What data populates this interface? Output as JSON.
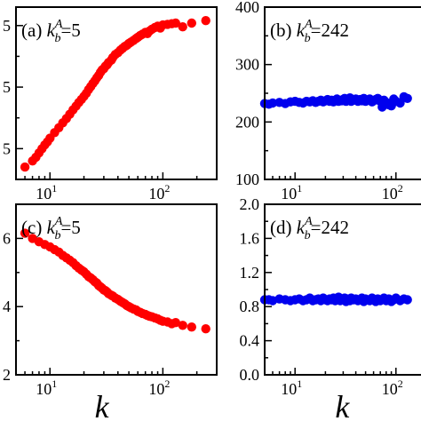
{
  "chart_data": [
    {
      "type": "scatter",
      "panel": "(a)",
      "legend": {
        "prefix": "(a)",
        "var": "k",
        "sub": "b",
        "sup": "A",
        "value": "=5"
      },
      "xlabel": "k",
      "xscale": "log",
      "xlim": [
        5,
        300
      ],
      "xticks": [
        {
          "v": 10,
          "base": "10",
          "exp": "1"
        },
        {
          "v": 100,
          "base": "10",
          "exp": "2"
        }
      ],
      "ylim": [
        0,
        28
      ],
      "yticks": [
        {
          "v": 5,
          "label": "5"
        },
        {
          "v": 15,
          "label": "5"
        },
        {
          "v": 25,
          "label": "5"
        }
      ],
      "yticks_label_note": "left digits clipped in image",
      "color": "#ff0000",
      "x": [
        6,
        7,
        7.5,
        8,
        8.5,
        9,
        9.5,
        10,
        11,
        12,
        13,
        14,
        15,
        16,
        17,
        18,
        19,
        20,
        21,
        22,
        23,
        24,
        25,
        26,
        27,
        28,
        29,
        30,
        31,
        32,
        33,
        35,
        36,
        38,
        40,
        42,
        44,
        46,
        48,
        50,
        52,
        55,
        58,
        60,
        63,
        66,
        70,
        73,
        76,
        80,
        85,
        90,
        95,
        100,
        110,
        120,
        130,
        150,
        180,
        240
      ],
      "y": [
        2.0,
        3.0,
        3.6,
        4.3,
        5.0,
        5.6,
        6.1,
        6.7,
        7.6,
        8.4,
        9.2,
        9.9,
        10.6,
        11.3,
        11.9,
        12.5,
        13.0,
        13.5,
        14.0,
        14.6,
        15.1,
        15.6,
        16.0,
        16.5,
        16.9,
        17.4,
        17.8,
        18.0,
        18.4,
        18.6,
        19.0,
        19.4,
        19.8,
        20.3,
        20.6,
        21.0,
        21.3,
        21.6,
        21.8,
        22.1,
        22.3,
        22.6,
        22.9,
        23.1,
        23.4,
        23.6,
        23.9,
        23.7,
        24.1,
        24.4,
        24.7,
        24.9,
        24.6,
        25.1,
        25.2,
        25.3,
        25.4,
        24.8,
        25.4,
        25.8
      ]
    },
    {
      "type": "scatter",
      "panel": "(b)",
      "legend": {
        "prefix": "(b)",
        "var": "k",
        "sub": "b",
        "sup": "A",
        "value": "=242"
      },
      "xlabel": "k",
      "xscale": "log",
      "xlim": [
        5,
        300
      ],
      "xticks": [
        {
          "v": 10,
          "base": "10",
          "exp": "1"
        },
        {
          "v": 100,
          "base": "10",
          "exp": "2"
        }
      ],
      "ylim": [
        100,
        400
      ],
      "yticks": [
        {
          "v": 100,
          "label": "100"
        },
        {
          "v": 200,
          "label": "200"
        },
        {
          "v": 300,
          "label": "300"
        },
        {
          "v": 400,
          "label": "400"
        }
      ],
      "color": "#0000ee",
      "x": [
        5,
        5.5,
        6,
        7,
        8,
        9,
        10,
        11,
        12,
        13,
        14,
        15,
        16,
        17,
        18,
        19,
        20,
        21,
        22,
        23,
        24,
        25,
        26,
        27,
        28,
        29,
        30,
        31,
        32,
        33,
        34,
        35,
        36,
        38,
        40,
        42,
        44,
        46,
        48,
        50,
        52,
        55,
        58,
        60,
        63,
        66,
        70,
        73,
        76,
        80,
        85,
        90,
        95,
        100,
        110,
        120,
        130
      ],
      "y": [
        232,
        231,
        233,
        234,
        232,
        235,
        236,
        234,
        233,
        236,
        235,
        237,
        234,
        236,
        238,
        235,
        237,
        239,
        236,
        238,
        235,
        237,
        240,
        236,
        238,
        237,
        239,
        241,
        236,
        238,
        240,
        242,
        236,
        238,
        240,
        236,
        239,
        237,
        241,
        236,
        238,
        240,
        235,
        237,
        239,
        241,
        236,
        226,
        238,
        234,
        230,
        228,
        240,
        236,
        233,
        244,
        241
      ]
    },
    {
      "type": "scatter",
      "panel": "(c)",
      "legend": {
        "prefix": "(c)",
        "var": "k",
        "sub": "b",
        "sup": "A",
        "value": "=5"
      },
      "xlabel": "k",
      "xscale": "log",
      "xlim": [
        5,
        300
      ],
      "xticks": [
        {
          "v": 10,
          "base": "10",
          "exp": "1"
        },
        {
          "v": 100,
          "base": "10",
          "exp": "2"
        }
      ],
      "ylim": [
        2,
        7
      ],
      "yticks": [
        {
          "v": 2,
          "label": "2"
        },
        {
          "v": 4,
          "label": "4"
        },
        {
          "v": 6,
          "label": "6"
        }
      ],
      "color": "#ff0000",
      "x": [
        6,
        7,
        8,
        9,
        10,
        11,
        12,
        13,
        14,
        15,
        16,
        17,
        18,
        19,
        20,
        21,
        22,
        23,
        24,
        25,
        26,
        27,
        28,
        29,
        30,
        31,
        32,
        33,
        35,
        36,
        38,
        40,
        42,
        44,
        46,
        48,
        50,
        52,
        55,
        58,
        60,
        63,
        66,
        70,
        73,
        76,
        80,
        85,
        90,
        95,
        100,
        110,
        120,
        130,
        150,
        180,
        240
      ],
      "y": [
        6.15,
        6.0,
        5.9,
        5.82,
        5.75,
        5.67,
        5.6,
        5.5,
        5.43,
        5.36,
        5.29,
        5.2,
        5.13,
        5.07,
        5.02,
        4.95,
        4.88,
        4.84,
        4.79,
        4.73,
        4.69,
        4.62,
        4.58,
        4.54,
        4.49,
        4.47,
        4.43,
        4.38,
        4.33,
        4.31,
        4.25,
        4.21,
        4.16,
        4.12,
        4.08,
        4.03,
        4.0,
        3.97,
        3.93,
        3.9,
        3.86,
        3.83,
        3.8,
        3.77,
        3.74,
        3.72,
        3.7,
        3.67,
        3.64,
        3.6,
        3.57,
        3.55,
        3.5,
        3.53,
        3.45,
        3.4,
        3.35
      ]
    },
    {
      "type": "scatter",
      "panel": "(d)",
      "legend": {
        "prefix": "(d)",
        "var": "k",
        "sub": "b",
        "sup": "A",
        "value": "=242"
      },
      "xlabel": "k",
      "xscale": "log",
      "xlim": [
        5,
        300
      ],
      "xticks": [
        {
          "v": 10,
          "base": "10",
          "exp": "1"
        },
        {
          "v": 100,
          "base": "10",
          "exp": "2"
        }
      ],
      "ylim": [
        0.0,
        2.0
      ],
      "yticks": [
        {
          "v": 0.0,
          "label": "0.0"
        },
        {
          "v": 0.4,
          "label": "0.4"
        },
        {
          "v": 0.8,
          "label": "0.8"
        },
        {
          "v": 1.2,
          "label": "1.2"
        },
        {
          "v": 1.6,
          "label": "1.6"
        },
        {
          "v": 2.0,
          "label": "2.0"
        }
      ],
      "color": "#0000ee",
      "x": [
        5,
        5.5,
        6,
        7,
        8,
        9,
        10,
        11,
        12,
        13,
        14,
        15,
        16,
        17,
        18,
        19,
        20,
        21,
        22,
        23,
        24,
        25,
        26,
        27,
        28,
        29,
        30,
        31,
        32,
        33,
        34,
        35,
        36,
        38,
        40,
        42,
        44,
        46,
        48,
        50,
        52,
        55,
        58,
        60,
        63,
        66,
        70,
        73,
        76,
        80,
        85,
        90,
        95,
        100,
        110,
        120,
        130
      ],
      "y": [
        0.88,
        0.88,
        0.87,
        0.89,
        0.88,
        0.87,
        0.88,
        0.89,
        0.87,
        0.88,
        0.9,
        0.87,
        0.88,
        0.89,
        0.87,
        0.9,
        0.88,
        0.87,
        0.89,
        0.88,
        0.9,
        0.87,
        0.88,
        0.91,
        0.87,
        0.89,
        0.88,
        0.9,
        0.86,
        0.89,
        0.88,
        0.87,
        0.9,
        0.88,
        0.89,
        0.87,
        0.88,
        0.9,
        0.86,
        0.89,
        0.88,
        0.87,
        0.9,
        0.88,
        0.86,
        0.89,
        0.87,
        0.88,
        0.9,
        0.87,
        0.89,
        0.86,
        0.88,
        0.9,
        0.87,
        0.89,
        0.88
      ]
    }
  ]
}
